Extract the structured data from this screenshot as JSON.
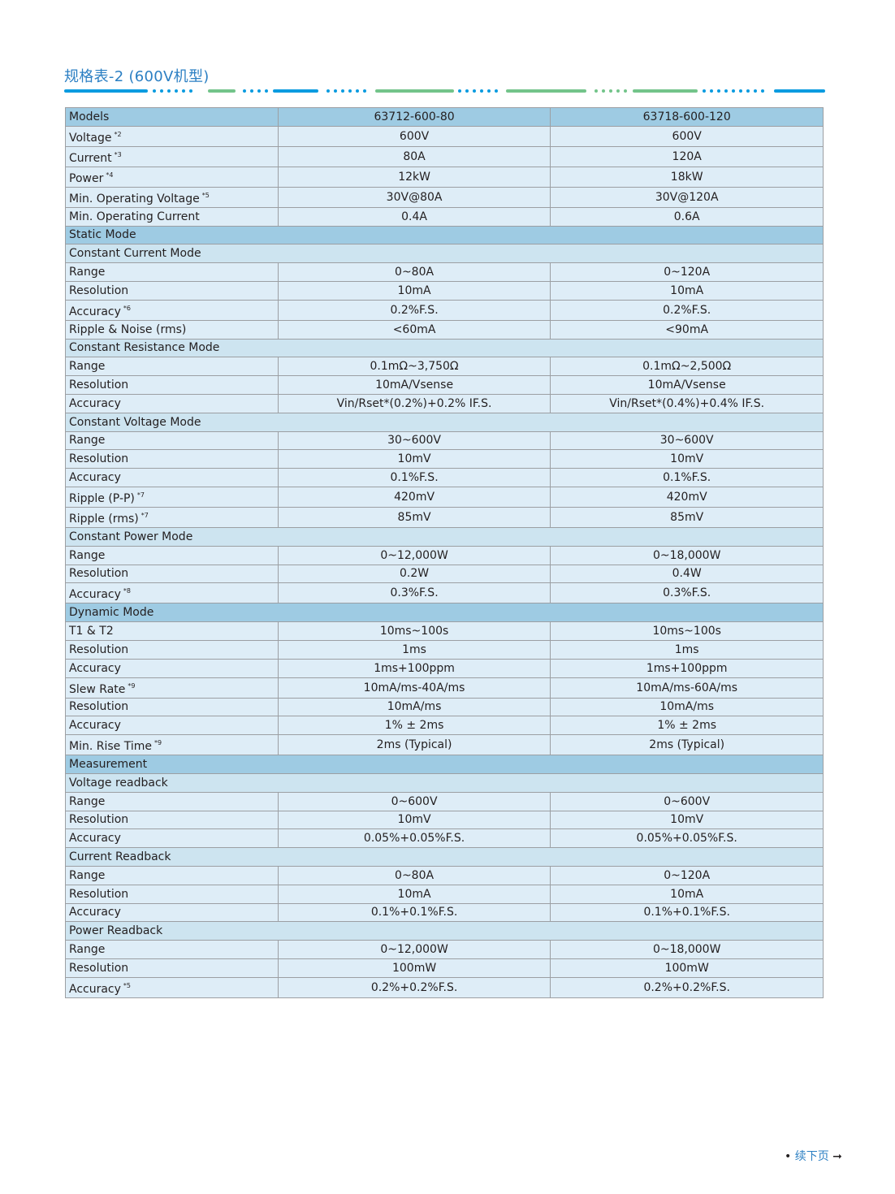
{
  "title": "规格表-2 (600V机型)",
  "colors": {
    "title": "#2b7fc3",
    "header_row": "#9ecbe3",
    "subsection_row": "#cde4f0",
    "data_row": "#deedf7",
    "deco_blue": "#0a9be0",
    "deco_green": "#73c48a"
  },
  "table": {
    "rows": [
      {
        "type": "h",
        "label": "Models",
        "values": [
          "63712-600-80",
          "63718-600-120"
        ]
      },
      {
        "type": "d",
        "label": "Voltage",
        "sup": "*2",
        "values": [
          "600V",
          "600V"
        ]
      },
      {
        "type": "d",
        "label": "Current",
        "sup": "*3",
        "values": [
          "80A",
          "120A"
        ]
      },
      {
        "type": "d",
        "label": "Power",
        "sup": "*4",
        "values": [
          "12kW",
          "18kW"
        ]
      },
      {
        "type": "d",
        "label": "Min. Operating Voltage",
        "sup": "*5",
        "values": [
          "30V@80A",
          "30V@120A"
        ]
      },
      {
        "type": "d",
        "label": "Min. Operating Current",
        "values": [
          "0.4A",
          "0.6A"
        ]
      },
      {
        "type": "h",
        "label": "Static Mode"
      },
      {
        "type": "s",
        "label": "Constant Current Mode"
      },
      {
        "type": "d",
        "label": "Range",
        "values": [
          "0~80A",
          "0~120A"
        ]
      },
      {
        "type": "d",
        "label": "Resolution",
        "values": [
          "10mA",
          "10mA"
        ]
      },
      {
        "type": "d",
        "label": "Accuracy",
        "sup": "*6",
        "values": [
          "0.2%F.S.",
          "0.2%F.S."
        ]
      },
      {
        "type": "d",
        "label": "Ripple & Noise (rms)",
        "values": [
          "<60mA",
          "<90mA"
        ]
      },
      {
        "type": "s",
        "label": "Constant Resistance Mode"
      },
      {
        "type": "d",
        "label": "Range",
        "values": [
          "0.1mΩ~3,750Ω",
          "0.1mΩ~2,500Ω"
        ]
      },
      {
        "type": "d",
        "label": "Resolution",
        "values": [
          "10mA/Vsense",
          "10mA/Vsense"
        ]
      },
      {
        "type": "d",
        "label": "Accuracy",
        "values": [
          "Vin/Rset*(0.2%)+0.2% IF.S.",
          "Vin/Rset*(0.4%)+0.4% IF.S."
        ]
      },
      {
        "type": "s",
        "label": "Constant Voltage Mode"
      },
      {
        "type": "d",
        "label": "Range",
        "values": [
          "30~600V",
          "30~600V"
        ]
      },
      {
        "type": "d",
        "label": "Resolution",
        "values": [
          "10mV",
          "10mV"
        ]
      },
      {
        "type": "d",
        "label": "Accuracy",
        "values": [
          "0.1%F.S.",
          "0.1%F.S."
        ]
      },
      {
        "type": "d",
        "label": "Ripple (P-P)",
        "sup": "*7",
        "values": [
          "420mV",
          "420mV"
        ]
      },
      {
        "type": "d",
        "label": "Ripple (rms)",
        "sup": "*7",
        "values": [
          "85mV",
          "85mV"
        ]
      },
      {
        "type": "s",
        "label": "Constant Power Mode"
      },
      {
        "type": "d",
        "label": "Range",
        "values": [
          "0~12,000W",
          "0~18,000W"
        ]
      },
      {
        "type": "d",
        "label": "Resolution",
        "values": [
          "0.2W",
          "0.4W"
        ]
      },
      {
        "type": "d",
        "label": "Accuracy",
        "sup": "*8",
        "values": [
          "0.3%F.S.",
          "0.3%F.S."
        ]
      },
      {
        "type": "h",
        "label": "Dynamic Mode"
      },
      {
        "type": "d",
        "label": "T1 & T2",
        "values": [
          "10ms~100s",
          "10ms~100s"
        ]
      },
      {
        "type": "d",
        "label": "Resolution",
        "values": [
          "1ms",
          "1ms"
        ]
      },
      {
        "type": "d",
        "label": "Accuracy",
        "values": [
          "1ms+100ppm",
          "1ms+100ppm"
        ]
      },
      {
        "type": "d",
        "label": "Slew Rate",
        "sup": "*9",
        "values": [
          "10mA/ms-40A/ms",
          "10mA/ms-60A/ms"
        ]
      },
      {
        "type": "d",
        "label": "Resolution",
        "values": [
          "10mA/ms",
          "10mA/ms"
        ]
      },
      {
        "type": "d",
        "label": "Accuracy",
        "values": [
          "1% ± 2ms",
          "1% ± 2ms"
        ]
      },
      {
        "type": "d",
        "label": "Min. Rise Time",
        "sup": "*9",
        "values": [
          "2ms (Typical)",
          "2ms (Typical)"
        ]
      },
      {
        "type": "h",
        "label": "Measurement"
      },
      {
        "type": "s",
        "label": "Voltage readback"
      },
      {
        "type": "d",
        "label": "Range",
        "values": [
          "0~600V",
          "0~600V"
        ]
      },
      {
        "type": "d",
        "label": "Resolution",
        "values": [
          "10mV",
          "10mV"
        ]
      },
      {
        "type": "d",
        "label": "Accuracy",
        "values": [
          "0.05%+0.05%F.S.",
          "0.05%+0.05%F.S."
        ]
      },
      {
        "type": "s",
        "label": "Current Readback"
      },
      {
        "type": "d",
        "label": "Range",
        "values": [
          "0~80A",
          "0~120A"
        ]
      },
      {
        "type": "d",
        "label": "Resolution",
        "values": [
          "10mA",
          "10mA"
        ]
      },
      {
        "type": "d",
        "label": "Accuracy",
        "values": [
          "0.1%+0.1%F.S.",
          "0.1%+0.1%F.S."
        ]
      },
      {
        "type": "s",
        "label": "Power Readback"
      },
      {
        "type": "d",
        "label": "Range",
        "values": [
          "0~12,000W",
          "0~18,000W"
        ]
      },
      {
        "type": "d",
        "label": "Resolution",
        "values": [
          "100mW",
          "100mW"
        ]
      },
      {
        "type": "d",
        "label": "Accuracy",
        "sup": "*5",
        "values": [
          "0.2%+0.2%F.S.",
          "0.2%+0.2%F.S."
        ]
      }
    ]
  },
  "footer": {
    "bullet": "•",
    "label": "续下页",
    "arrow": "➞"
  }
}
